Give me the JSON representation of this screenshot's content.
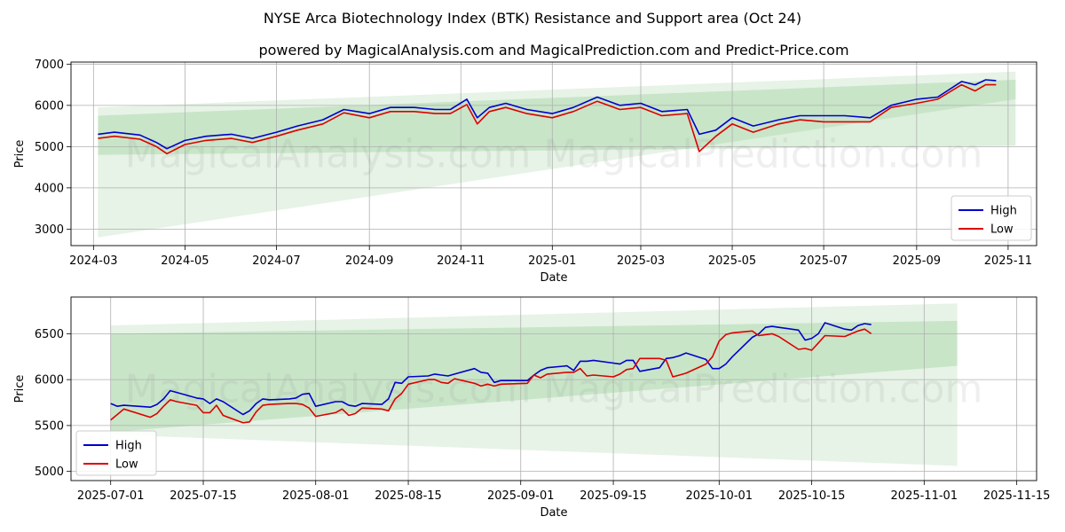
{
  "title": "NYSE Arca Biotechnology Index (BTK) Resistance and Support area (Oct 24)",
  "subtitle": "powered by MagicalAnalysis.com and MagicalPrediction.com and Predict-Price.com",
  "watermark": "MagicalAnalysis.com   MagicalPrediction.com",
  "colors": {
    "high": "#0000cc",
    "low": "#dd0000",
    "band": "#2e9b2e",
    "grid": "#b0b0b0"
  },
  "chart_data": [
    {
      "type": "line",
      "xlabel": "Date",
      "ylabel": "Price",
      "xlim": [
        "2024-02-15",
        "2025-11-20"
      ],
      "ylim": [
        2600,
        7050
      ],
      "x_ticks": [
        "2024-03",
        "2024-05",
        "2024-07",
        "2024-09",
        "2024-11",
        "2025-01",
        "2025-03",
        "2025-05",
        "2025-07",
        "2025-09",
        "2025-11"
      ],
      "y_ticks": [
        3000,
        4000,
        5000,
        6000,
        7000
      ],
      "grid": true,
      "legend_position": "lower-right",
      "bands": [
        {
          "x": [
            "2024-03-04",
            "2025-11-06"
          ],
          "upper": [
            5950,
            6820
          ],
          "lower": [
            2800,
            6150
          ]
        },
        {
          "x": [
            "2024-03-04",
            "2025-11-06"
          ],
          "upper": [
            5750,
            6620
          ],
          "lower": [
            4800,
            5020
          ]
        }
      ],
      "series": [
        {
          "name": "High",
          "x": [
            "2024-03-04",
            "2024-03-15",
            "2024-04-01",
            "2024-04-12",
            "2024-04-19",
            "2024-05-01",
            "2024-05-15",
            "2024-06-01",
            "2024-06-15",
            "2024-07-01",
            "2024-07-15",
            "2024-08-01",
            "2024-08-15",
            "2024-09-01",
            "2024-09-15",
            "2024-10-01",
            "2024-10-15",
            "2024-10-25",
            "2024-11-05",
            "2024-11-12",
            "2024-11-20",
            "2024-12-01",
            "2024-12-15",
            "2025-01-01",
            "2025-01-15",
            "2025-01-31",
            "2025-02-15",
            "2025-03-01",
            "2025-03-15",
            "2025-04-01",
            "2025-04-09",
            "2025-04-20",
            "2025-05-01",
            "2025-05-15",
            "2025-06-01",
            "2025-06-15",
            "2025-07-01",
            "2025-07-15",
            "2025-08-01",
            "2025-08-15",
            "2025-09-01",
            "2025-09-15",
            "2025-10-01",
            "2025-10-10",
            "2025-10-17",
            "2025-10-24"
          ],
          "values": [
            5300,
            5350,
            5280,
            5100,
            4950,
            5150,
            5250,
            5300,
            5200,
            5350,
            5500,
            5650,
            5900,
            5800,
            5950,
            5950,
            5900,
            5900,
            6150,
            5700,
            5950,
            6050,
            5900,
            5800,
            5950,
            6200,
            6000,
            6050,
            5850,
            5900,
            5300,
            5400,
            5700,
            5500,
            5650,
            5750,
            5750,
            5750,
            5700,
            6000,
            6150,
            6200,
            6580,
            6500,
            6620,
            6600
          ]
        },
        {
          "name": "Low",
          "x": [
            "2024-03-04",
            "2024-03-15",
            "2024-04-01",
            "2024-04-12",
            "2024-04-19",
            "2024-05-01",
            "2024-05-15",
            "2024-06-01",
            "2024-06-15",
            "2024-07-01",
            "2024-07-15",
            "2024-08-01",
            "2024-08-15",
            "2024-09-01",
            "2024-09-15",
            "2024-10-01",
            "2024-10-15",
            "2024-10-25",
            "2024-11-05",
            "2024-11-12",
            "2024-11-20",
            "2024-12-01",
            "2024-12-15",
            "2025-01-01",
            "2025-01-15",
            "2025-01-31",
            "2025-02-15",
            "2025-03-01",
            "2025-03-15",
            "2025-04-01",
            "2025-04-09",
            "2025-04-20",
            "2025-05-01",
            "2025-05-15",
            "2025-06-01",
            "2025-06-15",
            "2025-07-01",
            "2025-07-15",
            "2025-08-01",
            "2025-08-15",
            "2025-09-01",
            "2025-09-15",
            "2025-10-01",
            "2025-10-10",
            "2025-10-17",
            "2025-10-24"
          ],
          "values": [
            5200,
            5250,
            5180,
            5000,
            4830,
            5050,
            5150,
            5200,
            5100,
            5250,
            5400,
            5550,
            5820,
            5700,
            5850,
            5850,
            5800,
            5800,
            6020,
            5550,
            5850,
            5950,
            5800,
            5700,
            5850,
            6100,
            5900,
            5950,
            5750,
            5800,
            4880,
            5250,
            5550,
            5350,
            5550,
            5650,
            5600,
            5600,
            5600,
            5950,
            6050,
            6150,
            6500,
            6350,
            6500,
            6500
          ]
        }
      ]
    },
    {
      "type": "line",
      "xlabel": "Date",
      "ylabel": "Price",
      "xlim": [
        "2025-06-25",
        "2025-11-18"
      ],
      "ylim": [
        4900,
        6900
      ],
      "x_ticks": [
        "2025-07-01",
        "2025-07-15",
        "2025-08-01",
        "2025-08-15",
        "2025-09-01",
        "2025-09-15",
        "2025-10-01",
        "2025-10-15",
        "2025-11-01",
        "2025-11-15"
      ],
      "y_ticks": [
        5000,
        5500,
        6000,
        6500
      ],
      "grid": true,
      "legend_position": "lower-left",
      "bands": [
        {
          "x": [
            "2025-07-01",
            "2025-11-06"
          ],
          "upper": [
            6590,
            6830
          ],
          "lower": [
            5400,
            5060
          ]
        },
        {
          "x": [
            "2025-07-01",
            "2025-11-06"
          ],
          "upper": [
            6500,
            6640
          ],
          "lower": [
            5430,
            6150
          ]
        }
      ],
      "series": [
        {
          "name": "High",
          "x": [
            "2025-07-01",
            "2025-07-02",
            "2025-07-03",
            "2025-07-07",
            "2025-07-08",
            "2025-07-09",
            "2025-07-10",
            "2025-07-11",
            "2025-07-14",
            "2025-07-15",
            "2025-07-16",
            "2025-07-17",
            "2025-07-18",
            "2025-07-21",
            "2025-07-22",
            "2025-07-23",
            "2025-07-24",
            "2025-07-25",
            "2025-07-28",
            "2025-07-29",
            "2025-07-30",
            "2025-07-31",
            "2025-08-01",
            "2025-08-04",
            "2025-08-05",
            "2025-08-06",
            "2025-08-07",
            "2025-08-08",
            "2025-08-11",
            "2025-08-12",
            "2025-08-13",
            "2025-08-14",
            "2025-08-15",
            "2025-08-18",
            "2025-08-19",
            "2025-08-20",
            "2025-08-21",
            "2025-08-22",
            "2025-08-25",
            "2025-08-26",
            "2025-08-27",
            "2025-08-28",
            "2025-08-29",
            "2025-09-02",
            "2025-09-03",
            "2025-09-04",
            "2025-09-05",
            "2025-09-08",
            "2025-09-09",
            "2025-09-10",
            "2025-09-11",
            "2025-09-12",
            "2025-09-15",
            "2025-09-16",
            "2025-09-17",
            "2025-09-18",
            "2025-09-19",
            "2025-09-22",
            "2025-09-23",
            "2025-09-24",
            "2025-09-25",
            "2025-09-26",
            "2025-09-29",
            "2025-09-30",
            "2025-10-01",
            "2025-10-02",
            "2025-10-03",
            "2025-10-06",
            "2025-10-07",
            "2025-10-08",
            "2025-10-09",
            "2025-10-10",
            "2025-10-13",
            "2025-10-14",
            "2025-10-15",
            "2025-10-16",
            "2025-10-17",
            "2025-10-20",
            "2025-10-21",
            "2025-10-22",
            "2025-10-23",
            "2025-10-24"
          ],
          "values": [
            5740,
            5710,
            5720,
            5700,
            5730,
            5790,
            5880,
            5860,
            5800,
            5790,
            5740,
            5790,
            5760,
            5620,
            5660,
            5740,
            5790,
            5780,
            5790,
            5800,
            5840,
            5850,
            5710,
            5760,
            5760,
            5720,
            5710,
            5740,
            5730,
            5790,
            5970,
            5960,
            6030,
            6040,
            6060,
            6050,
            6040,
            6060,
            6120,
            6080,
            6070,
            5970,
            5990,
            5990,
            6050,
            6100,
            6130,
            6150,
            6100,
            6200,
            6200,
            6210,
            6180,
            6170,
            6210,
            6210,
            6090,
            6130,
            6230,
            6240,
            6260,
            6290,
            6220,
            6120,
            6120,
            6170,
            6250,
            6460,
            6500,
            6570,
            6580,
            6570,
            6540,
            6430,
            6450,
            6500,
            6620,
            6550,
            6540,
            6590,
            6610,
            6600
          ]
        },
        {
          "name": "Low",
          "x": [
            "2025-07-01",
            "2025-07-02",
            "2025-07-03",
            "2025-07-07",
            "2025-07-08",
            "2025-07-09",
            "2025-07-10",
            "2025-07-11",
            "2025-07-14",
            "2025-07-15",
            "2025-07-16",
            "2025-07-17",
            "2025-07-18",
            "2025-07-21",
            "2025-07-22",
            "2025-07-23",
            "2025-07-24",
            "2025-07-25",
            "2025-07-28",
            "2025-07-29",
            "2025-07-30",
            "2025-07-31",
            "2025-08-01",
            "2025-08-04",
            "2025-08-05",
            "2025-08-06",
            "2025-08-07",
            "2025-08-08",
            "2025-08-11",
            "2025-08-12",
            "2025-08-13",
            "2025-08-14",
            "2025-08-15",
            "2025-08-18",
            "2025-08-19",
            "2025-08-20",
            "2025-08-21",
            "2025-08-22",
            "2025-08-25",
            "2025-08-26",
            "2025-08-27",
            "2025-08-28",
            "2025-08-29",
            "2025-09-02",
            "2025-09-03",
            "2025-09-04",
            "2025-09-05",
            "2025-09-08",
            "2025-09-09",
            "2025-09-10",
            "2025-09-11",
            "2025-09-12",
            "2025-09-15",
            "2025-09-16",
            "2025-09-17",
            "2025-09-18",
            "2025-09-19",
            "2025-09-22",
            "2025-09-23",
            "2025-09-24",
            "2025-09-25",
            "2025-09-26",
            "2025-09-29",
            "2025-09-30",
            "2025-10-01",
            "2025-10-02",
            "2025-10-03",
            "2025-10-06",
            "2025-10-07",
            "2025-10-08",
            "2025-10-09",
            "2025-10-10",
            "2025-10-13",
            "2025-10-14",
            "2025-10-15",
            "2025-10-16",
            "2025-10-17",
            "2025-10-20",
            "2025-10-21",
            "2025-10-22",
            "2025-10-23",
            "2025-10-24"
          ],
          "values": [
            5560,
            5620,
            5680,
            5590,
            5630,
            5710,
            5780,
            5760,
            5720,
            5640,
            5640,
            5720,
            5610,
            5530,
            5540,
            5650,
            5720,
            5730,
            5740,
            5740,
            5730,
            5690,
            5600,
            5640,
            5680,
            5610,
            5630,
            5690,
            5680,
            5660,
            5790,
            5850,
            5950,
            6000,
            6000,
            5970,
            5960,
            6010,
            5960,
            5930,
            5950,
            5930,
            5950,
            5960,
            6050,
            6020,
            6060,
            6080,
            6080,
            6120,
            6040,
            6050,
            6030,
            6060,
            6110,
            6120,
            6230,
            6230,
            6210,
            6030,
            6050,
            6070,
            6170,
            6250,
            6420,
            6490,
            6510,
            6530,
            6480,
            6490,
            6500,
            6470,
            6330,
            6340,
            6320,
            6400,
            6480,
            6470,
            6500,
            6530,
            6550,
            6500
          ]
        }
      ]
    }
  ]
}
